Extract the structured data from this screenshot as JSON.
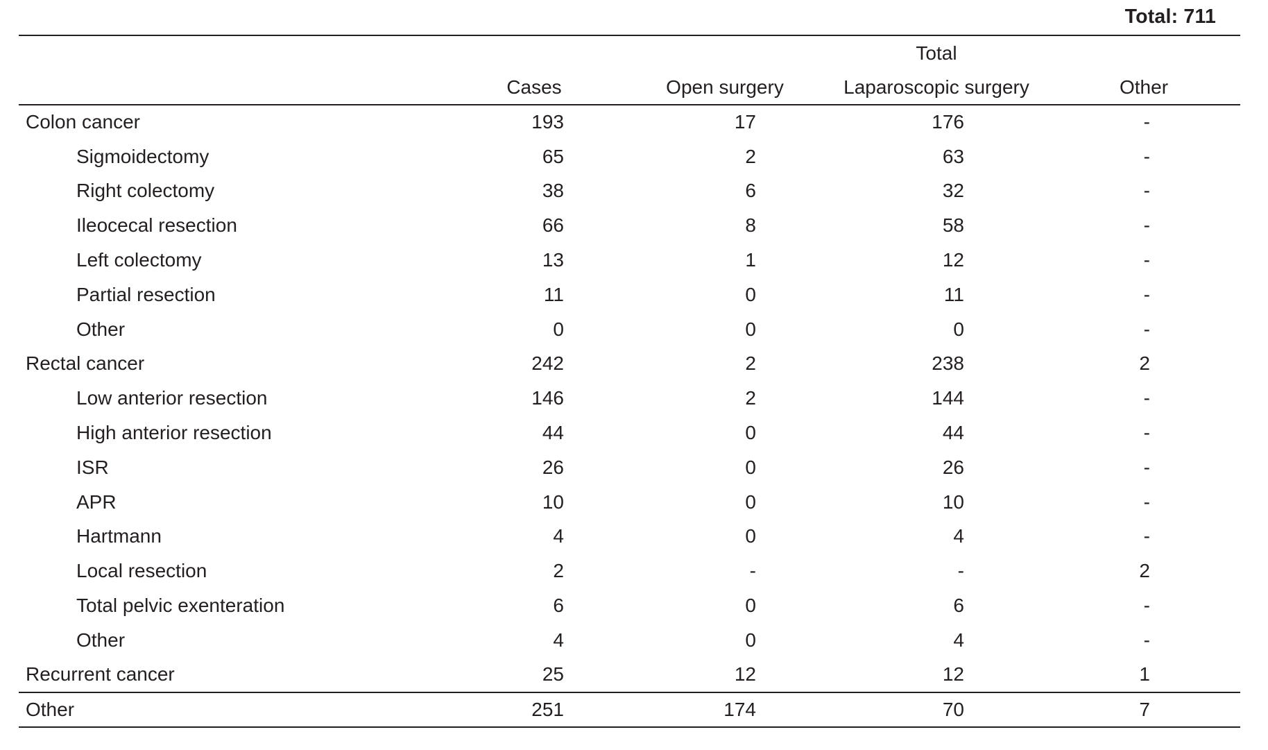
{
  "page": {
    "grand_total_label": "Total: 711"
  },
  "table": {
    "group_header": {
      "total": "Total"
    },
    "columns": {
      "cases": "Cases",
      "open": "Open surgery",
      "lap": "Laparoscopic surgery",
      "other": "Other"
    },
    "rows": [
      {
        "label": "Colon cancer",
        "cases": "193",
        "open": "17",
        "lap": "176",
        "other": "-"
      },
      {
        "label": "Sigmoidectomy",
        "cases": "65",
        "open": "2",
        "lap": "63",
        "other": "-"
      },
      {
        "label": "Right colectomy",
        "cases": "38",
        "open": "6",
        "lap": "32",
        "other": "-"
      },
      {
        "label": "Ileocecal resection",
        "cases": "66",
        "open": "8",
        "lap": "58",
        "other": "-"
      },
      {
        "label": "Left colectomy",
        "cases": "13",
        "open": "1",
        "lap": "12",
        "other": "-"
      },
      {
        "label": "Partial resection",
        "cases": "11",
        "open": "0",
        "lap": "11",
        "other": "-"
      },
      {
        "label": "Other",
        "cases": "0",
        "open": "0",
        "lap": "0",
        "other": "-"
      },
      {
        "label": "Rectal cancer",
        "cases": "242",
        "open": "2",
        "lap": "238",
        "other": "2"
      },
      {
        "label": "Low anterior resection",
        "cases": "146",
        "open": "2",
        "lap": "144",
        "other": "-"
      },
      {
        "label": "High anterior resection",
        "cases": "44",
        "open": "0",
        "lap": "44",
        "other": "-"
      },
      {
        "label": "ISR",
        "cases": "26",
        "open": "0",
        "lap": "26",
        "other": "-"
      },
      {
        "label": "APR",
        "cases": "10",
        "open": "0",
        "lap": "10",
        "other": "-"
      },
      {
        "label": "Hartmann",
        "cases": "4",
        "open": "0",
        "lap": "4",
        "other": "-"
      },
      {
        "label": "Local resection",
        "cases": "2",
        "open": "-",
        "lap": "-",
        "other": "2"
      },
      {
        "label": "Total pelvic exenteration",
        "cases": "6",
        "open": "0",
        "lap": "6",
        "other": "-"
      },
      {
        "label": "Other",
        "cases": "4",
        "open": "0",
        "lap": "4",
        "other": "-"
      },
      {
        "label": "Recurrent cancer",
        "cases": "25",
        "open": "12",
        "lap": "12",
        "other": "1"
      },
      {
        "label": "Other",
        "cases": "251",
        "open": "174",
        "lap": "70",
        "other": "7"
      }
    ]
  }
}
